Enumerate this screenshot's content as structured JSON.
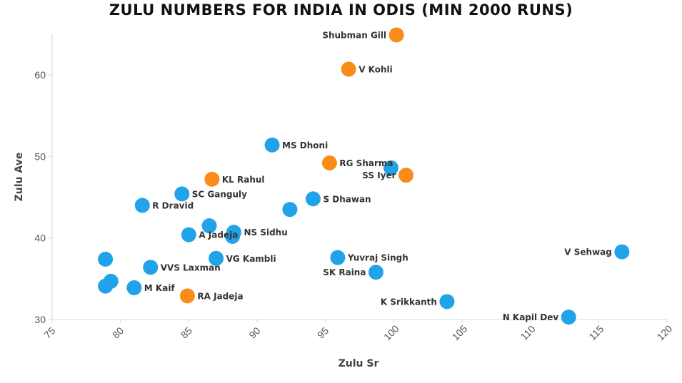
{
  "chart_data": {
    "type": "scatter",
    "title": "ZULU NUMBERS FOR INDIA IN ODIS (MIN 2000 RUNS)",
    "xlabel": "Zulu Sr",
    "ylabel": "Zulu Ave",
    "xlim": [
      75,
      120
    ],
    "ylim": [
      30,
      65
    ],
    "xticks": [
      75,
      80,
      85,
      90,
      95,
      100,
      105,
      110,
      115,
      120
    ],
    "yticks": [
      30,
      40,
      50,
      60
    ],
    "grid": false,
    "colors": {
      "blue": "#22a2e8",
      "orange": "#f98c19"
    },
    "points": [
      {
        "x": 100.2,
        "y": 64.9,
        "label": "Shubman Gill",
        "color": "orange",
        "align": "left"
      },
      {
        "x": 96.7,
        "y": 60.7,
        "label": "V Kohli",
        "color": "orange",
        "align": "right"
      },
      {
        "x": 91.1,
        "y": 51.4,
        "label": "MS Dhoni",
        "color": "blue",
        "align": "right"
      },
      {
        "x": 95.3,
        "y": 49.2,
        "label": "RG Sharma",
        "color": "orange",
        "align": "right"
      },
      {
        "x": 99.8,
        "y": 48.6,
        "label": "",
        "color": "blue",
        "align": "right"
      },
      {
        "x": 100.9,
        "y": 47.7,
        "label": "SS Iyer",
        "color": "orange",
        "align": "left"
      },
      {
        "x": 86.7,
        "y": 47.2,
        "label": "KL Rahul",
        "color": "orange",
        "align": "right"
      },
      {
        "x": 84.5,
        "y": 45.4,
        "label": "SC Ganguly",
        "color": "blue",
        "align": "right"
      },
      {
        "x": 94.1,
        "y": 44.8,
        "label": "S Dhawan",
        "color": "blue",
        "align": "right"
      },
      {
        "x": 81.6,
        "y": 44.0,
        "label": "R Dravid",
        "color": "blue",
        "align": "right"
      },
      {
        "x": 92.4,
        "y": 43.5,
        "label": "",
        "color": "blue",
        "align": "right"
      },
      {
        "x": 86.5,
        "y": 41.5,
        "label": "",
        "color": "blue",
        "align": "right"
      },
      {
        "x": 88.3,
        "y": 40.7,
        "label": "NS Sidhu",
        "color": "blue",
        "align": "right"
      },
      {
        "x": 88.2,
        "y": 40.2,
        "label": "",
        "color": "blue",
        "align": "right"
      },
      {
        "x": 85.0,
        "y": 40.4,
        "label": "A Jadeja",
        "color": "blue",
        "align": "right"
      },
      {
        "x": 78.9,
        "y": 37.4,
        "label": "",
        "color": "blue",
        "align": "right"
      },
      {
        "x": 87.0,
        "y": 37.5,
        "label": "VG Kambli",
        "color": "blue",
        "align": "right"
      },
      {
        "x": 95.9,
        "y": 37.6,
        "label": "Yuvraj Singh",
        "color": "blue",
        "align": "right"
      },
      {
        "x": 116.7,
        "y": 38.3,
        "label": "V Sehwag",
        "color": "blue",
        "align": "left"
      },
      {
        "x": 82.2,
        "y": 36.4,
        "label": "VVS Laxman",
        "color": "blue",
        "align": "right"
      },
      {
        "x": 98.7,
        "y": 35.8,
        "label": "SK Raina",
        "color": "blue",
        "align": "left"
      },
      {
        "x": 79.3,
        "y": 34.7,
        "label": "",
        "color": "blue",
        "align": "right"
      },
      {
        "x": 78.9,
        "y": 34.1,
        "label": "",
        "color": "blue",
        "align": "right"
      },
      {
        "x": 81.0,
        "y": 33.9,
        "label": "M Kaif",
        "color": "blue",
        "align": "right"
      },
      {
        "x": 84.9,
        "y": 32.9,
        "label": "RA Jadeja",
        "color": "orange",
        "align": "right"
      },
      {
        "x": 103.9,
        "y": 32.2,
        "label": "K Srikkanth",
        "color": "blue",
        "align": "left"
      },
      {
        "x": 112.8,
        "y": 30.3,
        "label": "N Kapil Dev",
        "color": "blue",
        "align": "left"
      }
    ]
  }
}
